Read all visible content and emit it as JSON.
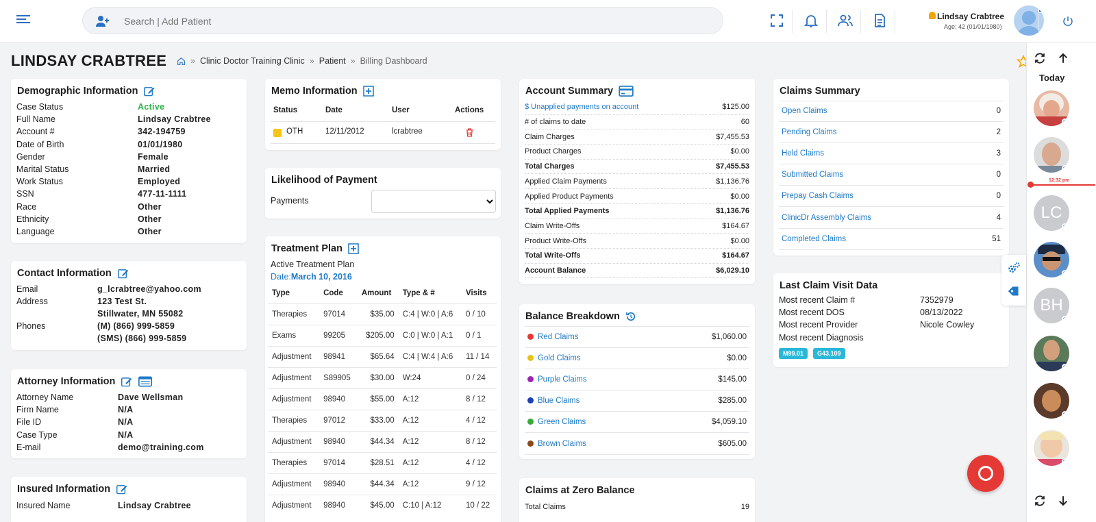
{
  "header": {
    "search_placeholder": "Search | Add Patient",
    "user_name": "Lindsay Crabtree",
    "user_age": "Age: 42 (01/01/1980)"
  },
  "page": {
    "title": "LINDSAY CRABTREE",
    "breadcrumbs": [
      "Clinic Doctor Training Clinic",
      "Patient",
      "Billing Dashboard"
    ],
    "breadcrumb_sep": "»"
  },
  "demographic": {
    "title": "Demographic Information",
    "rows": [
      {
        "label": "Case Status",
        "value": "Active"
      },
      {
        "label": "Full Name",
        "value": "Lindsay Crabtree"
      },
      {
        "label": "Account #",
        "value": "342-194759"
      },
      {
        "label": "Date of Birth",
        "value": "01/01/1980"
      },
      {
        "label": "Gender",
        "value": "Female"
      },
      {
        "label": "Marital Status",
        "value": "Married"
      },
      {
        "label": "Work Status",
        "value": "Employed"
      },
      {
        "label": "SSN",
        "value": "477-11-1111"
      },
      {
        "label": "Race",
        "value": "Other"
      },
      {
        "label": "Ethnicity",
        "value": "Other"
      },
      {
        "label": "Language",
        "value": "Other"
      }
    ]
  },
  "contact": {
    "title": "Contact Information",
    "email_label": "Email",
    "email": "g_lcrabtree@yahoo.com",
    "address_label": "Address",
    "address1": "123 Test St.",
    "address2": "Stillwater, MN 55082",
    "phones_label": "Phones",
    "phone1": "(M) (866) 999-5859",
    "phone2": "(SMS) (866) 999-5859"
  },
  "attorney": {
    "title": "Attorney Information",
    "rows": [
      {
        "label": "Attorney Name",
        "value": "Dave Wellsman"
      },
      {
        "label": "Firm Name",
        "value": "N/A"
      },
      {
        "label": "File ID",
        "value": "N/A"
      },
      {
        "label": "Case Type",
        "value": "N/A"
      },
      {
        "label": "E-mail",
        "value": "demo@training.com"
      }
    ]
  },
  "insured": {
    "title": "Insured Information",
    "label": "Insured Name",
    "value": "Lindsay Crabtree"
  },
  "memo": {
    "title": "Memo Information",
    "headers": [
      "Status",
      "Date",
      "User",
      "Actions"
    ],
    "row": {
      "status": "OTH",
      "date": "12/11/2012",
      "user": "lcrabtree"
    }
  },
  "likelihood": {
    "title": "Likelihood of Payment",
    "label": "Payments",
    "selected": ""
  },
  "treatment": {
    "title": "Treatment Plan",
    "subtitle": "Active Treatment Plan",
    "date_label": "Date:",
    "date_value": "March 10, 2016",
    "headers": [
      "Type",
      "Code",
      "Amount",
      "Type & #",
      "Visits"
    ],
    "rows": [
      [
        "Therapies",
        "97014",
        "$35.00",
        "C:4 | W:0 | A:6",
        "0 / 10"
      ],
      [
        "Exams",
        "99205",
        "$205.00",
        "C:0 | W:0 | A:1",
        "0 / 1"
      ],
      [
        "Adjustment",
        "98941",
        "$65.64",
        "C:4 | W:4 | A:6",
        "11 / 14"
      ],
      [
        "Adjustment",
        "S89905",
        "$30.00",
        "W:24",
        "0 / 24"
      ],
      [
        "Adjustment",
        "98940",
        "$55.00",
        "A:12",
        "8 / 12"
      ],
      [
        "Therapies",
        "97012",
        "$33.00",
        "A:12",
        "4 / 12"
      ],
      [
        "Adjustment",
        "98940",
        "$44.34",
        "A:12",
        "8 / 12"
      ],
      [
        "Therapies",
        "97014",
        "$28.51",
        "A:12",
        "4 / 12"
      ],
      [
        "Adjustment",
        "98940",
        "$44.34",
        "A:12",
        "9 / 12"
      ],
      [
        "Adjustment",
        "98940",
        "$45.00",
        "C:10 | A:12",
        "10 / 22"
      ]
    ]
  },
  "account": {
    "title": "Account Summary",
    "rows": [
      {
        "label": "$ Unapplied payments on account",
        "value": "$125.00",
        "link": true,
        "bold": false
      },
      {
        "label": "# of claims to date",
        "value": "60",
        "link": false,
        "bold": false
      },
      {
        "label": "Claim Charges",
        "value": "$7,455.53",
        "link": false,
        "bold": false
      },
      {
        "label": "Product Charges",
        "value": "$0.00",
        "link": false,
        "bold": false
      },
      {
        "label": "Total Charges",
        "value": "$7,455.53",
        "link": false,
        "bold": true
      },
      {
        "label": "Applied Claim Payments",
        "value": "$1,136.76",
        "link": false,
        "bold": false
      },
      {
        "label": "Applied Product Payments",
        "value": "$0.00",
        "link": false,
        "bold": false
      },
      {
        "label": "Total Applied Payments",
        "value": "$1,136.76",
        "link": false,
        "bold": true
      },
      {
        "label": "Claim Write-Offs",
        "value": "$164.67",
        "link": false,
        "bold": false
      },
      {
        "label": "Product Write-Offs",
        "value": "$0.00",
        "link": false,
        "bold": false
      },
      {
        "label": "Total Write-Offs",
        "value": "$164.67",
        "link": false,
        "bold": true
      },
      {
        "label": "Account Balance",
        "value": "$6,029.10",
        "link": false,
        "bold": true
      }
    ]
  },
  "balance": {
    "title": "Balance Breakdown",
    "rows": [
      {
        "label": "Red Claims",
        "value": "$1,060.00",
        "color": "#e53935"
      },
      {
        "label": "Gold Claims",
        "value": "$0.00",
        "color": "#e6c21a"
      },
      {
        "label": "Purple Claims",
        "value": "$145.00",
        "color": "#9b27b0"
      },
      {
        "label": "Blue Claims",
        "value": "$285.00",
        "color": "#1f3fb5"
      },
      {
        "label": "Green Claims",
        "value": "$4,059.10",
        "color": "#3aa83a"
      },
      {
        "label": "Brown Claims",
        "value": "$605.00",
        "color": "#8b4a1a"
      }
    ]
  },
  "zero": {
    "title": "Claims at Zero Balance",
    "label": "Total Claims",
    "value": "19"
  },
  "claims": {
    "title": "Claims Summary",
    "rows": [
      {
        "label": "Open Claims",
        "value": "0"
      },
      {
        "label": "Pending Claims",
        "value": "2"
      },
      {
        "label": "Held Claims",
        "value": "3"
      },
      {
        "label": "Submitted Claims",
        "value": "0"
      },
      {
        "label": "Prepay Cash Claims",
        "value": "0"
      },
      {
        "label": "ClinicDr Assembly Claims",
        "value": "4"
      },
      {
        "label": "Completed Claims",
        "value": "51"
      }
    ]
  },
  "last_claim": {
    "title": "Last Claim Visit Data",
    "rows": [
      {
        "label": "Most recent Claim #",
        "value": "7352979"
      },
      {
        "label": "Most recent DOS",
        "value": "08/13/2022"
      },
      {
        "label": "Most recent Provider",
        "value": "Nicole Cowley"
      },
      {
        "label": "Most recent Diagnosis",
        "value": ""
      }
    ],
    "codes": [
      "M99.01",
      "G43.109"
    ]
  },
  "sidebar": {
    "today": "Today",
    "time_marker": "12:32 pm",
    "initials": [
      "LC",
      "BH"
    ]
  },
  "colors": {
    "accent": "#1f7ac8",
    "active_green": "#2db34a",
    "danger": "#e53935",
    "badge": "#2ab8d8"
  }
}
